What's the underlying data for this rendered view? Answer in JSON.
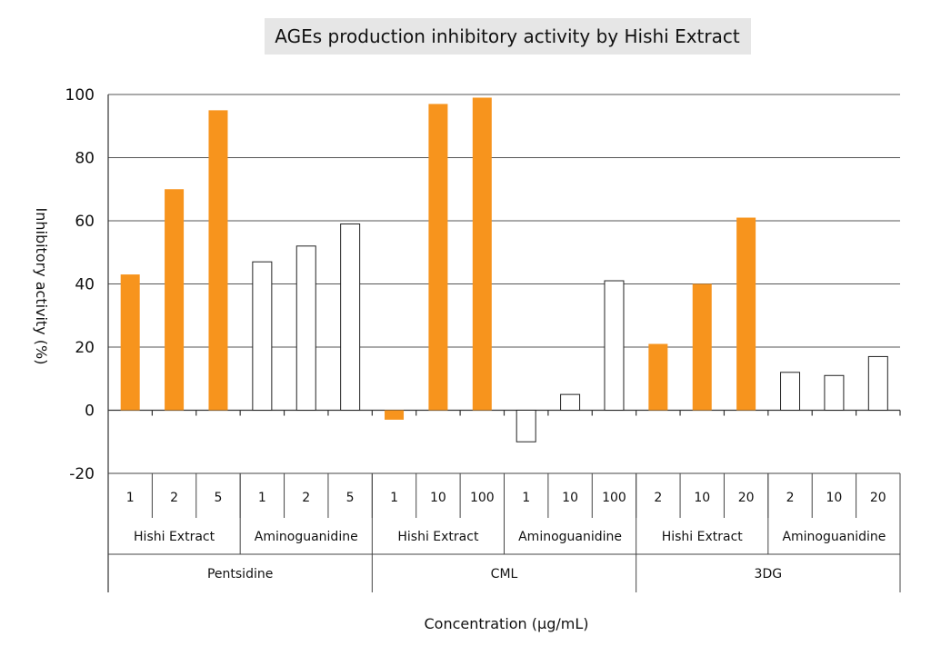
{
  "chart_data": {
    "type": "bar",
    "title": "AGEs production inhibitory activity by Hishi Extract",
    "ylabel": "Inhibitory activity (%)",
    "xlabel": "Concentration (μg/mL)",
    "ylim": [
      -20,
      100
    ],
    "yticks": [
      -20,
      0,
      20,
      40,
      60,
      80,
      100
    ],
    "grid": true,
    "colors": {
      "hishi": "#f7941d",
      "aminoguanidine": "#ffffff"
    },
    "groups": [
      {
        "name": "Pentsidine",
        "subgroups": [
          {
            "name": "Hishi Extract",
            "color_key": "hishi",
            "concentrations": [
              "1",
              "2",
              "5"
            ],
            "values": [
              43,
              70,
              95
            ]
          },
          {
            "name": "Aminoguanidine",
            "color_key": "aminoguanidine",
            "concentrations": [
              "1",
              "2",
              "5"
            ],
            "values": [
              47,
              52,
              59
            ]
          }
        ]
      },
      {
        "name": "CML",
        "subgroups": [
          {
            "name": "Hishi Extract",
            "color_key": "hishi",
            "concentrations": [
              "1",
              "10",
              "100"
            ],
            "values": [
              -3,
              97,
              99
            ]
          },
          {
            "name": "Aminoguanidine",
            "color_key": "aminoguanidine",
            "concentrations": [
              "1",
              "10",
              "100"
            ],
            "values": [
              -10,
              5,
              41
            ]
          }
        ]
      },
      {
        "name": "3DG",
        "subgroups": [
          {
            "name": "Hishi Extract",
            "color_key": "hishi",
            "concentrations": [
              "2",
              "10",
              "20"
            ],
            "values": [
              21,
              40,
              61
            ]
          },
          {
            "name": "Aminoguanidine",
            "color_key": "aminoguanidine",
            "concentrations": [
              "2",
              "10",
              "20"
            ],
            "values": [
              12,
              11,
              17
            ]
          }
        ]
      }
    ]
  }
}
